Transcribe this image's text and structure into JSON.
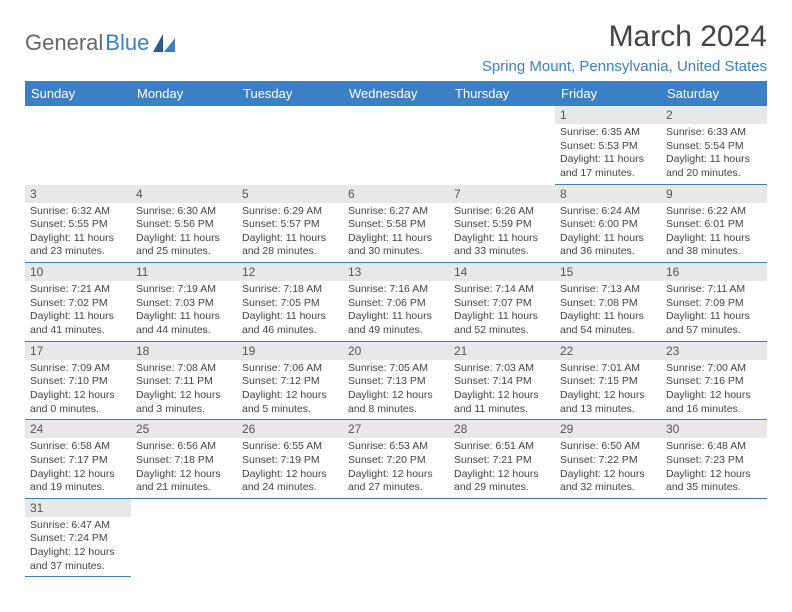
{
  "logo": {
    "part1": "General",
    "part2": "Blue"
  },
  "title": "March 2024",
  "location": "Spring Mount, Pennsylvania, United States",
  "colors": {
    "header_bg": "#3b7fc4",
    "header_text": "#ffffff",
    "daynum_bg": "#e8e8e8",
    "border": "#3b7fc4",
    "text": "#444444",
    "logo_blue": "#3b7fc4",
    "logo_gray": "#666666"
  },
  "daysOfWeek": [
    "Sunday",
    "Monday",
    "Tuesday",
    "Wednesday",
    "Thursday",
    "Friday",
    "Saturday"
  ],
  "weeks": [
    [
      null,
      null,
      null,
      null,
      null,
      {
        "n": "1",
        "sunrise": "Sunrise: 6:35 AM",
        "sunset": "Sunset: 5:53 PM",
        "daylight": "Daylight: 11 hours and 17 minutes."
      },
      {
        "n": "2",
        "sunrise": "Sunrise: 6:33 AM",
        "sunset": "Sunset: 5:54 PM",
        "daylight": "Daylight: 11 hours and 20 minutes."
      }
    ],
    [
      {
        "n": "3",
        "sunrise": "Sunrise: 6:32 AM",
        "sunset": "Sunset: 5:55 PM",
        "daylight": "Daylight: 11 hours and 23 minutes."
      },
      {
        "n": "4",
        "sunrise": "Sunrise: 6:30 AM",
        "sunset": "Sunset: 5:56 PM",
        "daylight": "Daylight: 11 hours and 25 minutes."
      },
      {
        "n": "5",
        "sunrise": "Sunrise: 6:29 AM",
        "sunset": "Sunset: 5:57 PM",
        "daylight": "Daylight: 11 hours and 28 minutes."
      },
      {
        "n": "6",
        "sunrise": "Sunrise: 6:27 AM",
        "sunset": "Sunset: 5:58 PM",
        "daylight": "Daylight: 11 hours and 30 minutes."
      },
      {
        "n": "7",
        "sunrise": "Sunrise: 6:26 AM",
        "sunset": "Sunset: 5:59 PM",
        "daylight": "Daylight: 11 hours and 33 minutes."
      },
      {
        "n": "8",
        "sunrise": "Sunrise: 6:24 AM",
        "sunset": "Sunset: 6:00 PM",
        "daylight": "Daylight: 11 hours and 36 minutes."
      },
      {
        "n": "9",
        "sunrise": "Sunrise: 6:22 AM",
        "sunset": "Sunset: 6:01 PM",
        "daylight": "Daylight: 11 hours and 38 minutes."
      }
    ],
    [
      {
        "n": "10",
        "sunrise": "Sunrise: 7:21 AM",
        "sunset": "Sunset: 7:02 PM",
        "daylight": "Daylight: 11 hours and 41 minutes."
      },
      {
        "n": "11",
        "sunrise": "Sunrise: 7:19 AM",
        "sunset": "Sunset: 7:03 PM",
        "daylight": "Daylight: 11 hours and 44 minutes."
      },
      {
        "n": "12",
        "sunrise": "Sunrise: 7:18 AM",
        "sunset": "Sunset: 7:05 PM",
        "daylight": "Daylight: 11 hours and 46 minutes."
      },
      {
        "n": "13",
        "sunrise": "Sunrise: 7:16 AM",
        "sunset": "Sunset: 7:06 PM",
        "daylight": "Daylight: 11 hours and 49 minutes."
      },
      {
        "n": "14",
        "sunrise": "Sunrise: 7:14 AM",
        "sunset": "Sunset: 7:07 PM",
        "daylight": "Daylight: 11 hours and 52 minutes."
      },
      {
        "n": "15",
        "sunrise": "Sunrise: 7:13 AM",
        "sunset": "Sunset: 7:08 PM",
        "daylight": "Daylight: 11 hours and 54 minutes."
      },
      {
        "n": "16",
        "sunrise": "Sunrise: 7:11 AM",
        "sunset": "Sunset: 7:09 PM",
        "daylight": "Daylight: 11 hours and 57 minutes."
      }
    ],
    [
      {
        "n": "17",
        "sunrise": "Sunrise: 7:09 AM",
        "sunset": "Sunset: 7:10 PM",
        "daylight": "Daylight: 12 hours and 0 minutes."
      },
      {
        "n": "18",
        "sunrise": "Sunrise: 7:08 AM",
        "sunset": "Sunset: 7:11 PM",
        "daylight": "Daylight: 12 hours and 3 minutes."
      },
      {
        "n": "19",
        "sunrise": "Sunrise: 7:06 AM",
        "sunset": "Sunset: 7:12 PM",
        "daylight": "Daylight: 12 hours and 5 minutes."
      },
      {
        "n": "20",
        "sunrise": "Sunrise: 7:05 AM",
        "sunset": "Sunset: 7:13 PM",
        "daylight": "Daylight: 12 hours and 8 minutes."
      },
      {
        "n": "21",
        "sunrise": "Sunrise: 7:03 AM",
        "sunset": "Sunset: 7:14 PM",
        "daylight": "Daylight: 12 hours and 11 minutes."
      },
      {
        "n": "22",
        "sunrise": "Sunrise: 7:01 AM",
        "sunset": "Sunset: 7:15 PM",
        "daylight": "Daylight: 12 hours and 13 minutes."
      },
      {
        "n": "23",
        "sunrise": "Sunrise: 7:00 AM",
        "sunset": "Sunset: 7:16 PM",
        "daylight": "Daylight: 12 hours and 16 minutes."
      }
    ],
    [
      {
        "n": "24",
        "sunrise": "Sunrise: 6:58 AM",
        "sunset": "Sunset: 7:17 PM",
        "daylight": "Daylight: 12 hours and 19 minutes."
      },
      {
        "n": "25",
        "sunrise": "Sunrise: 6:56 AM",
        "sunset": "Sunset: 7:18 PM",
        "daylight": "Daylight: 12 hours and 21 minutes."
      },
      {
        "n": "26",
        "sunrise": "Sunrise: 6:55 AM",
        "sunset": "Sunset: 7:19 PM",
        "daylight": "Daylight: 12 hours and 24 minutes."
      },
      {
        "n": "27",
        "sunrise": "Sunrise: 6:53 AM",
        "sunset": "Sunset: 7:20 PM",
        "daylight": "Daylight: 12 hours and 27 minutes."
      },
      {
        "n": "28",
        "sunrise": "Sunrise: 6:51 AM",
        "sunset": "Sunset: 7:21 PM",
        "daylight": "Daylight: 12 hours and 29 minutes."
      },
      {
        "n": "29",
        "sunrise": "Sunrise: 6:50 AM",
        "sunset": "Sunset: 7:22 PM",
        "daylight": "Daylight: 12 hours and 32 minutes."
      },
      {
        "n": "30",
        "sunrise": "Sunrise: 6:48 AM",
        "sunset": "Sunset: 7:23 PM",
        "daylight": "Daylight: 12 hours and 35 minutes."
      }
    ],
    [
      {
        "n": "31",
        "sunrise": "Sunrise: 6:47 AM",
        "sunset": "Sunset: 7:24 PM",
        "daylight": "Daylight: 12 hours and 37 minutes."
      },
      null,
      null,
      null,
      null,
      null,
      null
    ]
  ]
}
